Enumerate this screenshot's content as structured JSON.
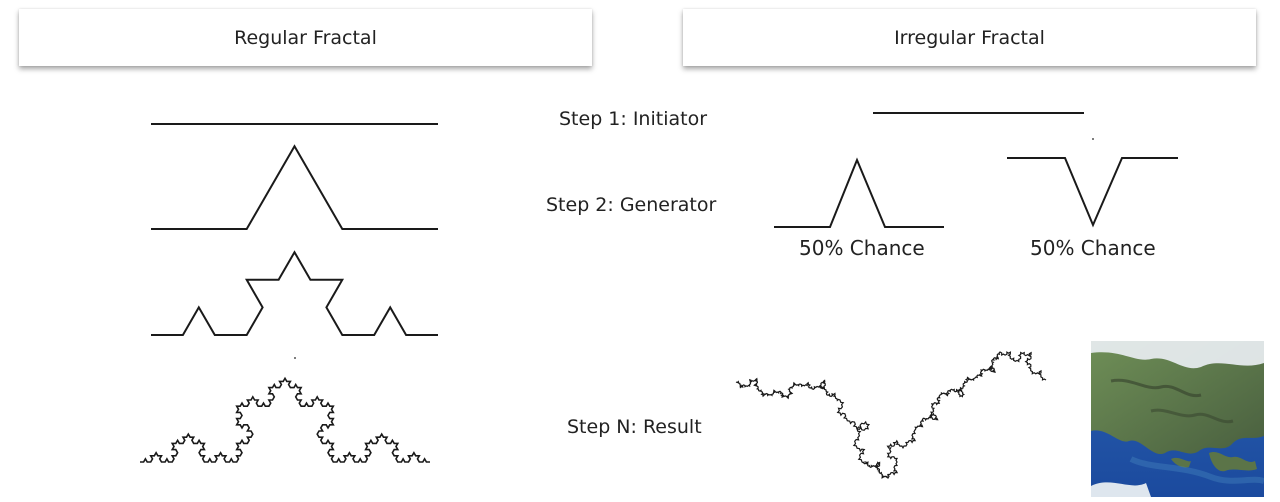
{
  "header": {
    "regular": "Regular Fractal",
    "irregular": "Irregular Fractal"
  },
  "steps": {
    "initiator": "Step 1: Initiator",
    "generator": "Step 2: Generator",
    "result": "Step N: Result"
  },
  "generator_options": [
    {
      "label": "50% Chance",
      "shape": "peak-up"
    },
    {
      "label": "50% Chance",
      "shape": "peak-down"
    }
  ],
  "regular_fractal_iterations": [
    0,
    1,
    2,
    4
  ],
  "colors": {
    "line": "#1a1a1a",
    "ocean": "#1f54a8",
    "land": "#5c7a4e"
  }
}
